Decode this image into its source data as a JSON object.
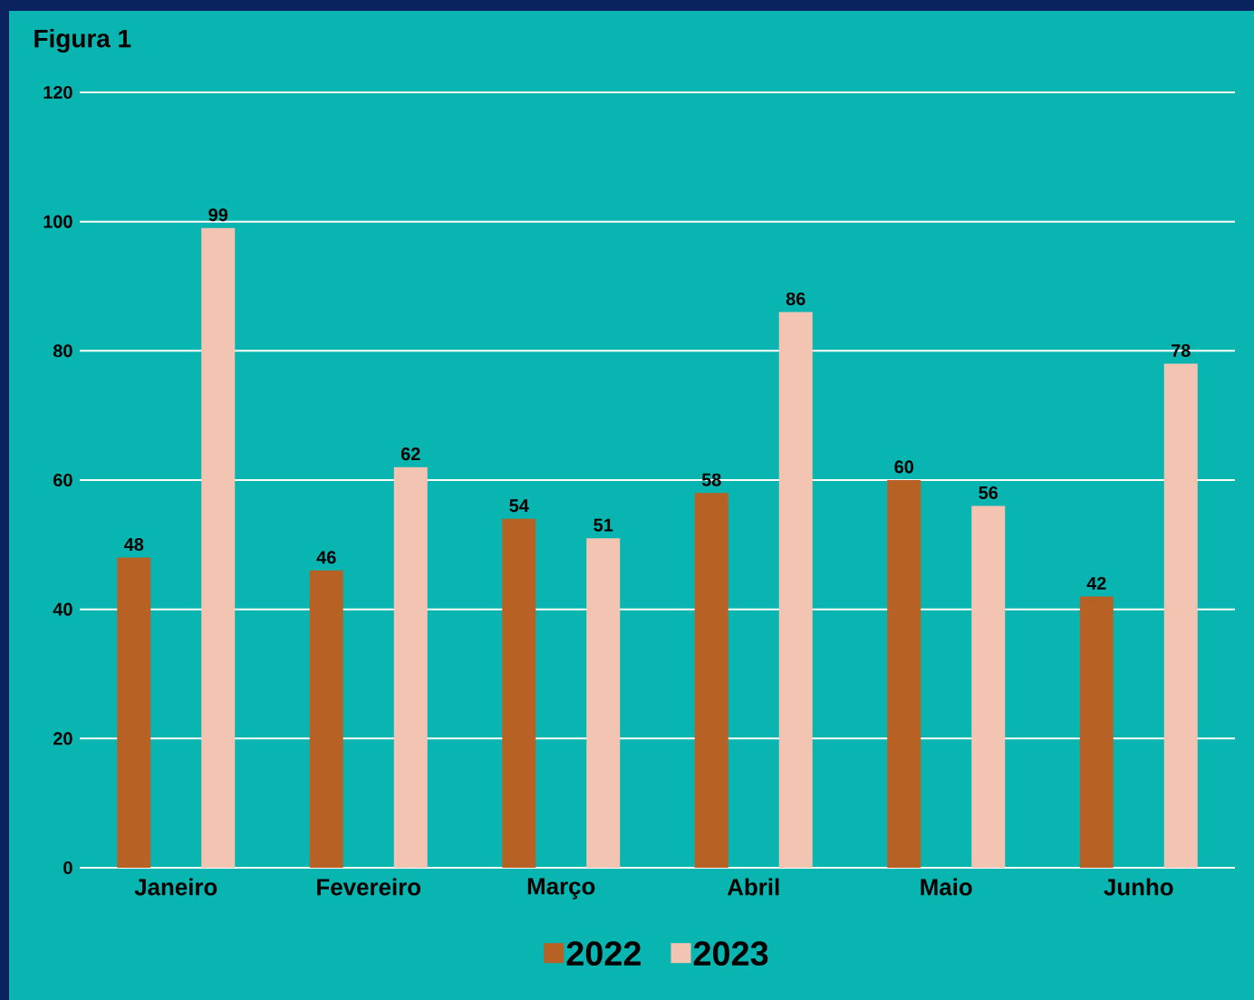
{
  "chart_data": {
    "type": "bar",
    "title": "Figura 1",
    "categories": [
      "Janeiro",
      "Fevereiro",
      "Março",
      "Abril",
      "Maio",
      "Junho"
    ],
    "series": [
      {
        "name": "2022",
        "color": "#b86125",
        "values": [
          48,
          46,
          54,
          58,
          60,
          42
        ]
      },
      {
        "name": "2023",
        "color": "#f4c4b2",
        "values": [
          99,
          62,
          51,
          86,
          56,
          78
        ]
      }
    ],
    "ylim": [
      0,
      120
    ],
    "yticks": [
      0,
      20,
      40,
      60,
      80,
      100,
      120
    ],
    "grid": "y",
    "legend": "bottom",
    "data_labels": true
  }
}
